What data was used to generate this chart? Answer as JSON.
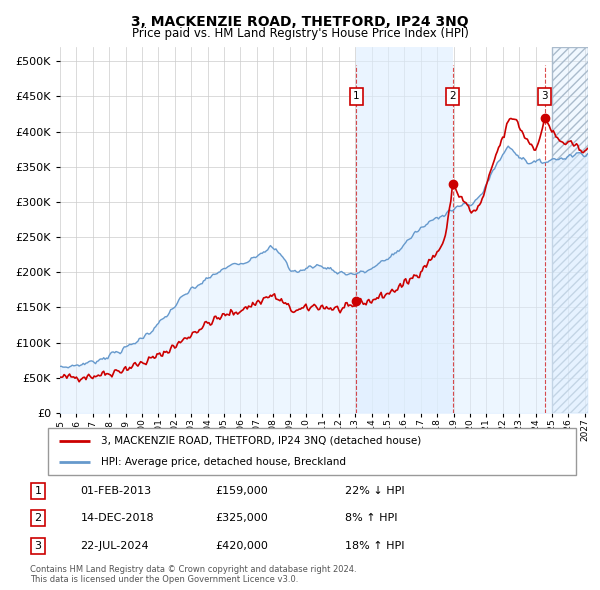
{
  "title": "3, MACKENZIE ROAD, THETFORD, IP24 3NQ",
  "subtitle": "Price paid vs. HM Land Registry's House Price Index (HPI)",
  "legend_property": "3, MACKENZIE ROAD, THETFORD, IP24 3NQ (detached house)",
  "legend_hpi": "HPI: Average price, detached house, Breckland",
  "sale_points": [
    {
      "label": "1",
      "date": 2013.08,
      "price": 159000
    },
    {
      "label": "2",
      "date": 2018.95,
      "price": 325000
    },
    {
      "label": "3",
      "date": 2024.55,
      "price": 420000
    }
  ],
  "table_rows": [
    {
      "num": "1",
      "date": "01-FEB-2013",
      "price": "£159,000",
      "change": "22% ↓ HPI"
    },
    {
      "num": "2",
      "date": "14-DEC-2018",
      "price": "£325,000",
      "change": "8% ↑ HPI"
    },
    {
      "num": "3",
      "date": "22-JUL-2024",
      "price": "£420,000",
      "change": "18% ↑ HPI"
    }
  ],
  "footnote1": "Contains HM Land Registry data © Crown copyright and database right 2024.",
  "footnote2": "This data is licensed under the Open Government Licence v3.0.",
  "ylim": [
    0,
    520000
  ],
  "xlim_start": 1995.0,
  "xlim_end": 2027.2,
  "property_color": "#cc0000",
  "hpi_color": "#6699cc",
  "hpi_fill_color": "#ddeeff",
  "bg_color": "#ffffff",
  "grid_color": "#cccccc",
  "sale1_date": 2013.08,
  "sale2_date": 2018.95,
  "sale3_date": 2024.55,
  "highlight_start": 2013.08,
  "highlight_end": 2018.95,
  "future_shade_start": 2025.0
}
